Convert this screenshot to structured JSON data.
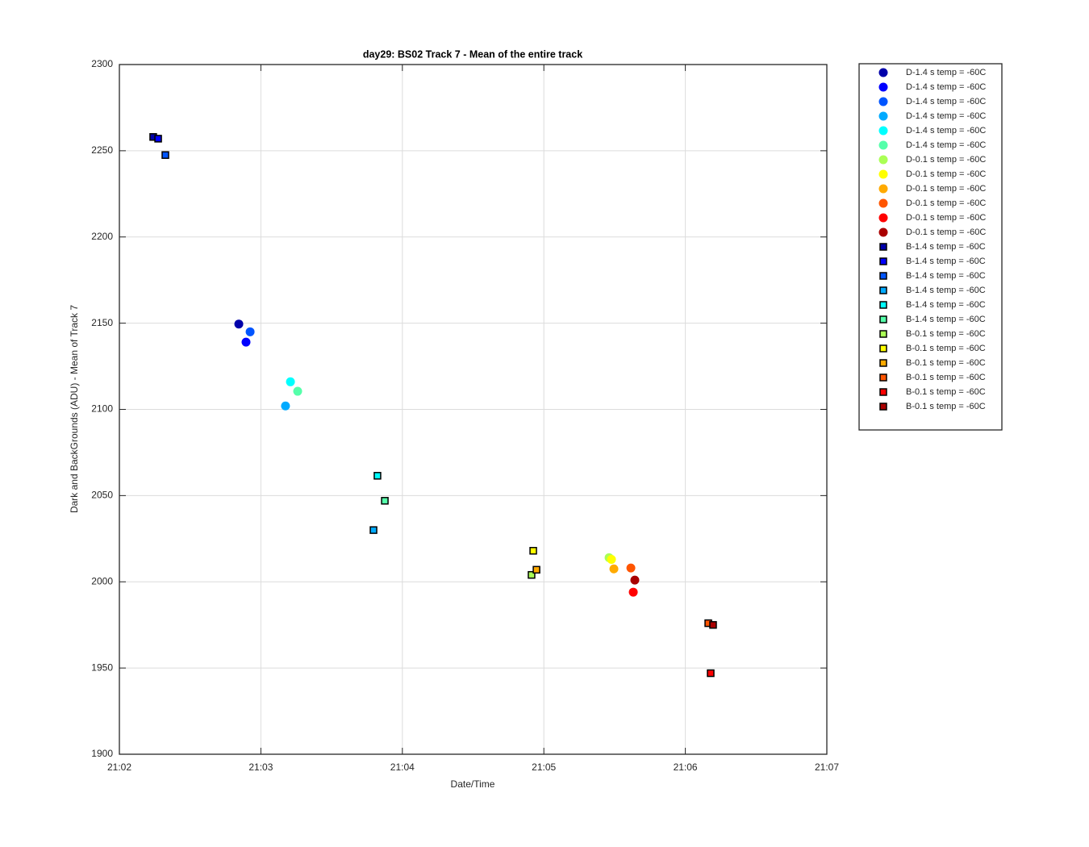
{
  "chart_data": {
    "type": "scatter",
    "title": "day29: BS02  Track 7 - Mean of the entire track",
    "xlabel": "Date/Time",
    "ylabel": "Dark and BackGrounds (ADU) - Mean of Track 7",
    "xlim": [
      1262,
      1267
    ],
    "xticks": [
      {
        "value": 1262,
        "label": "21:02"
      },
      {
        "value": 1263,
        "label": "21:03"
      },
      {
        "value": 1264,
        "label": "21:04"
      },
      {
        "value": 1265,
        "label": "21:05"
      },
      {
        "value": 1266,
        "label": "21:06"
      },
      {
        "value": 1267,
        "label": "21:07"
      }
    ],
    "ylim": [
      1900,
      2300
    ],
    "yticks": [
      1900,
      1950,
      2000,
      2050,
      2100,
      2150,
      2200,
      2250,
      2300
    ],
    "grid": true,
    "legend": "outside-right",
    "series": [
      {
        "name": "D-1.4 s temp = -60C",
        "color": "#0000AA",
        "marker": "circle",
        "x": [
          1262.844
        ],
        "values": [
          2149.5
        ]
      },
      {
        "name": "D-1.4 s temp = -60C",
        "color": "#0000FF",
        "marker": "circle",
        "x": [
          1262.895
        ],
        "values": [
          2139
        ]
      },
      {
        "name": "D-1.4 s temp = -60C",
        "color": "#0055FF",
        "marker": "circle",
        "x": [
          1262.924
        ],
        "values": [
          2145
        ]
      },
      {
        "name": "D-1.4 s temp = -60C",
        "color": "#00AAFF",
        "marker": "circle",
        "x": [
          1263.174
        ],
        "values": [
          2102
        ]
      },
      {
        "name": "D-1.4 s temp = -60C",
        "color": "#00FFFF",
        "marker": "circle",
        "x": [
          1263.209
        ],
        "values": [
          2116
        ]
      },
      {
        "name": "D-1.4 s temp = -60C",
        "color": "#55FFAA",
        "marker": "circle",
        "x": [
          1263.26
        ],
        "values": [
          2110.5
        ]
      },
      {
        "name": "D-0.1 s temp = -60C",
        "color": "#AAFF55",
        "marker": "circle",
        "x": [
          1265.461
        ],
        "values": [
          2014
        ]
      },
      {
        "name": "D-0.1 s temp = -60C",
        "color": "#FFFF00",
        "marker": "circle",
        "x": [
          1265.478
        ],
        "values": [
          2013
        ]
      },
      {
        "name": "D-0.1 s temp = -60C",
        "color": "#FFAA00",
        "marker": "circle",
        "x": [
          1265.495
        ],
        "values": [
          2007.5
        ]
      },
      {
        "name": "D-0.1 s temp = -60C",
        "color": "#FF5500",
        "marker": "circle",
        "x": [
          1265.615
        ],
        "values": [
          2008
        ]
      },
      {
        "name": "D-0.1 s temp = -60C",
        "color": "#FF0000",
        "marker": "circle",
        "x": [
          1265.632
        ],
        "values": [
          1994
        ]
      },
      {
        "name": "D-0.1 s temp = -60C",
        "color": "#AA0000",
        "marker": "circle",
        "x": [
          1265.643
        ],
        "values": [
          2001
        ]
      },
      {
        "name": "B-1.4 s temp = -60C",
        "color": "#0000AA",
        "marker": "square",
        "x": [
          1262.239
        ],
        "values": [
          2258
        ]
      },
      {
        "name": "B-1.4 s temp = -60C",
        "color": "#0000FF",
        "marker": "square",
        "x": [
          1262.274
        ],
        "values": [
          2257
        ]
      },
      {
        "name": "B-1.4 s temp = -60C",
        "color": "#0055FF",
        "marker": "square",
        "x": [
          1262.325
        ],
        "values": [
          2247.5
        ]
      },
      {
        "name": "B-1.4 s temp = -60C",
        "color": "#00AAFF",
        "marker": "square",
        "x": [
          1263.796
        ],
        "values": [
          2030
        ]
      },
      {
        "name": "B-1.4 s temp = -60C",
        "color": "#00FFFF",
        "marker": "square",
        "x": [
          1263.824
        ],
        "values": [
          2061.5
        ]
      },
      {
        "name": "B-1.4 s temp = -60C",
        "color": "#55FFAA",
        "marker": "square",
        "x": [
          1263.876
        ],
        "values": [
          2047
        ]
      },
      {
        "name": "B-0.1 s temp = -60C",
        "color": "#AAFF55",
        "marker": "square",
        "x": [
          1264.913
        ],
        "values": [
          2004
        ]
      },
      {
        "name": "B-0.1 s temp = -60C",
        "color": "#FFFF00",
        "marker": "square",
        "x": [
          1264.925
        ],
        "values": [
          2018
        ]
      },
      {
        "name": "B-0.1 s temp = -60C",
        "color": "#FFAA00",
        "marker": "square",
        "x": [
          1264.948
        ],
        "values": [
          2007
        ]
      },
      {
        "name": "B-0.1 s temp = -60C",
        "color": "#FF5500",
        "marker": "square",
        "x": [
          1266.162
        ],
        "values": [
          1976
        ]
      },
      {
        "name": "B-0.1 s temp = -60C",
        "color": "#FF0000",
        "marker": "square",
        "x": [
          1266.179
        ],
        "values": [
          1947
        ]
      },
      {
        "name": "B-0.1 s temp = -60C",
        "color": "#AA0000",
        "marker": "square",
        "x": [
          1266.196
        ],
        "values": [
          1975
        ]
      }
    ]
  }
}
